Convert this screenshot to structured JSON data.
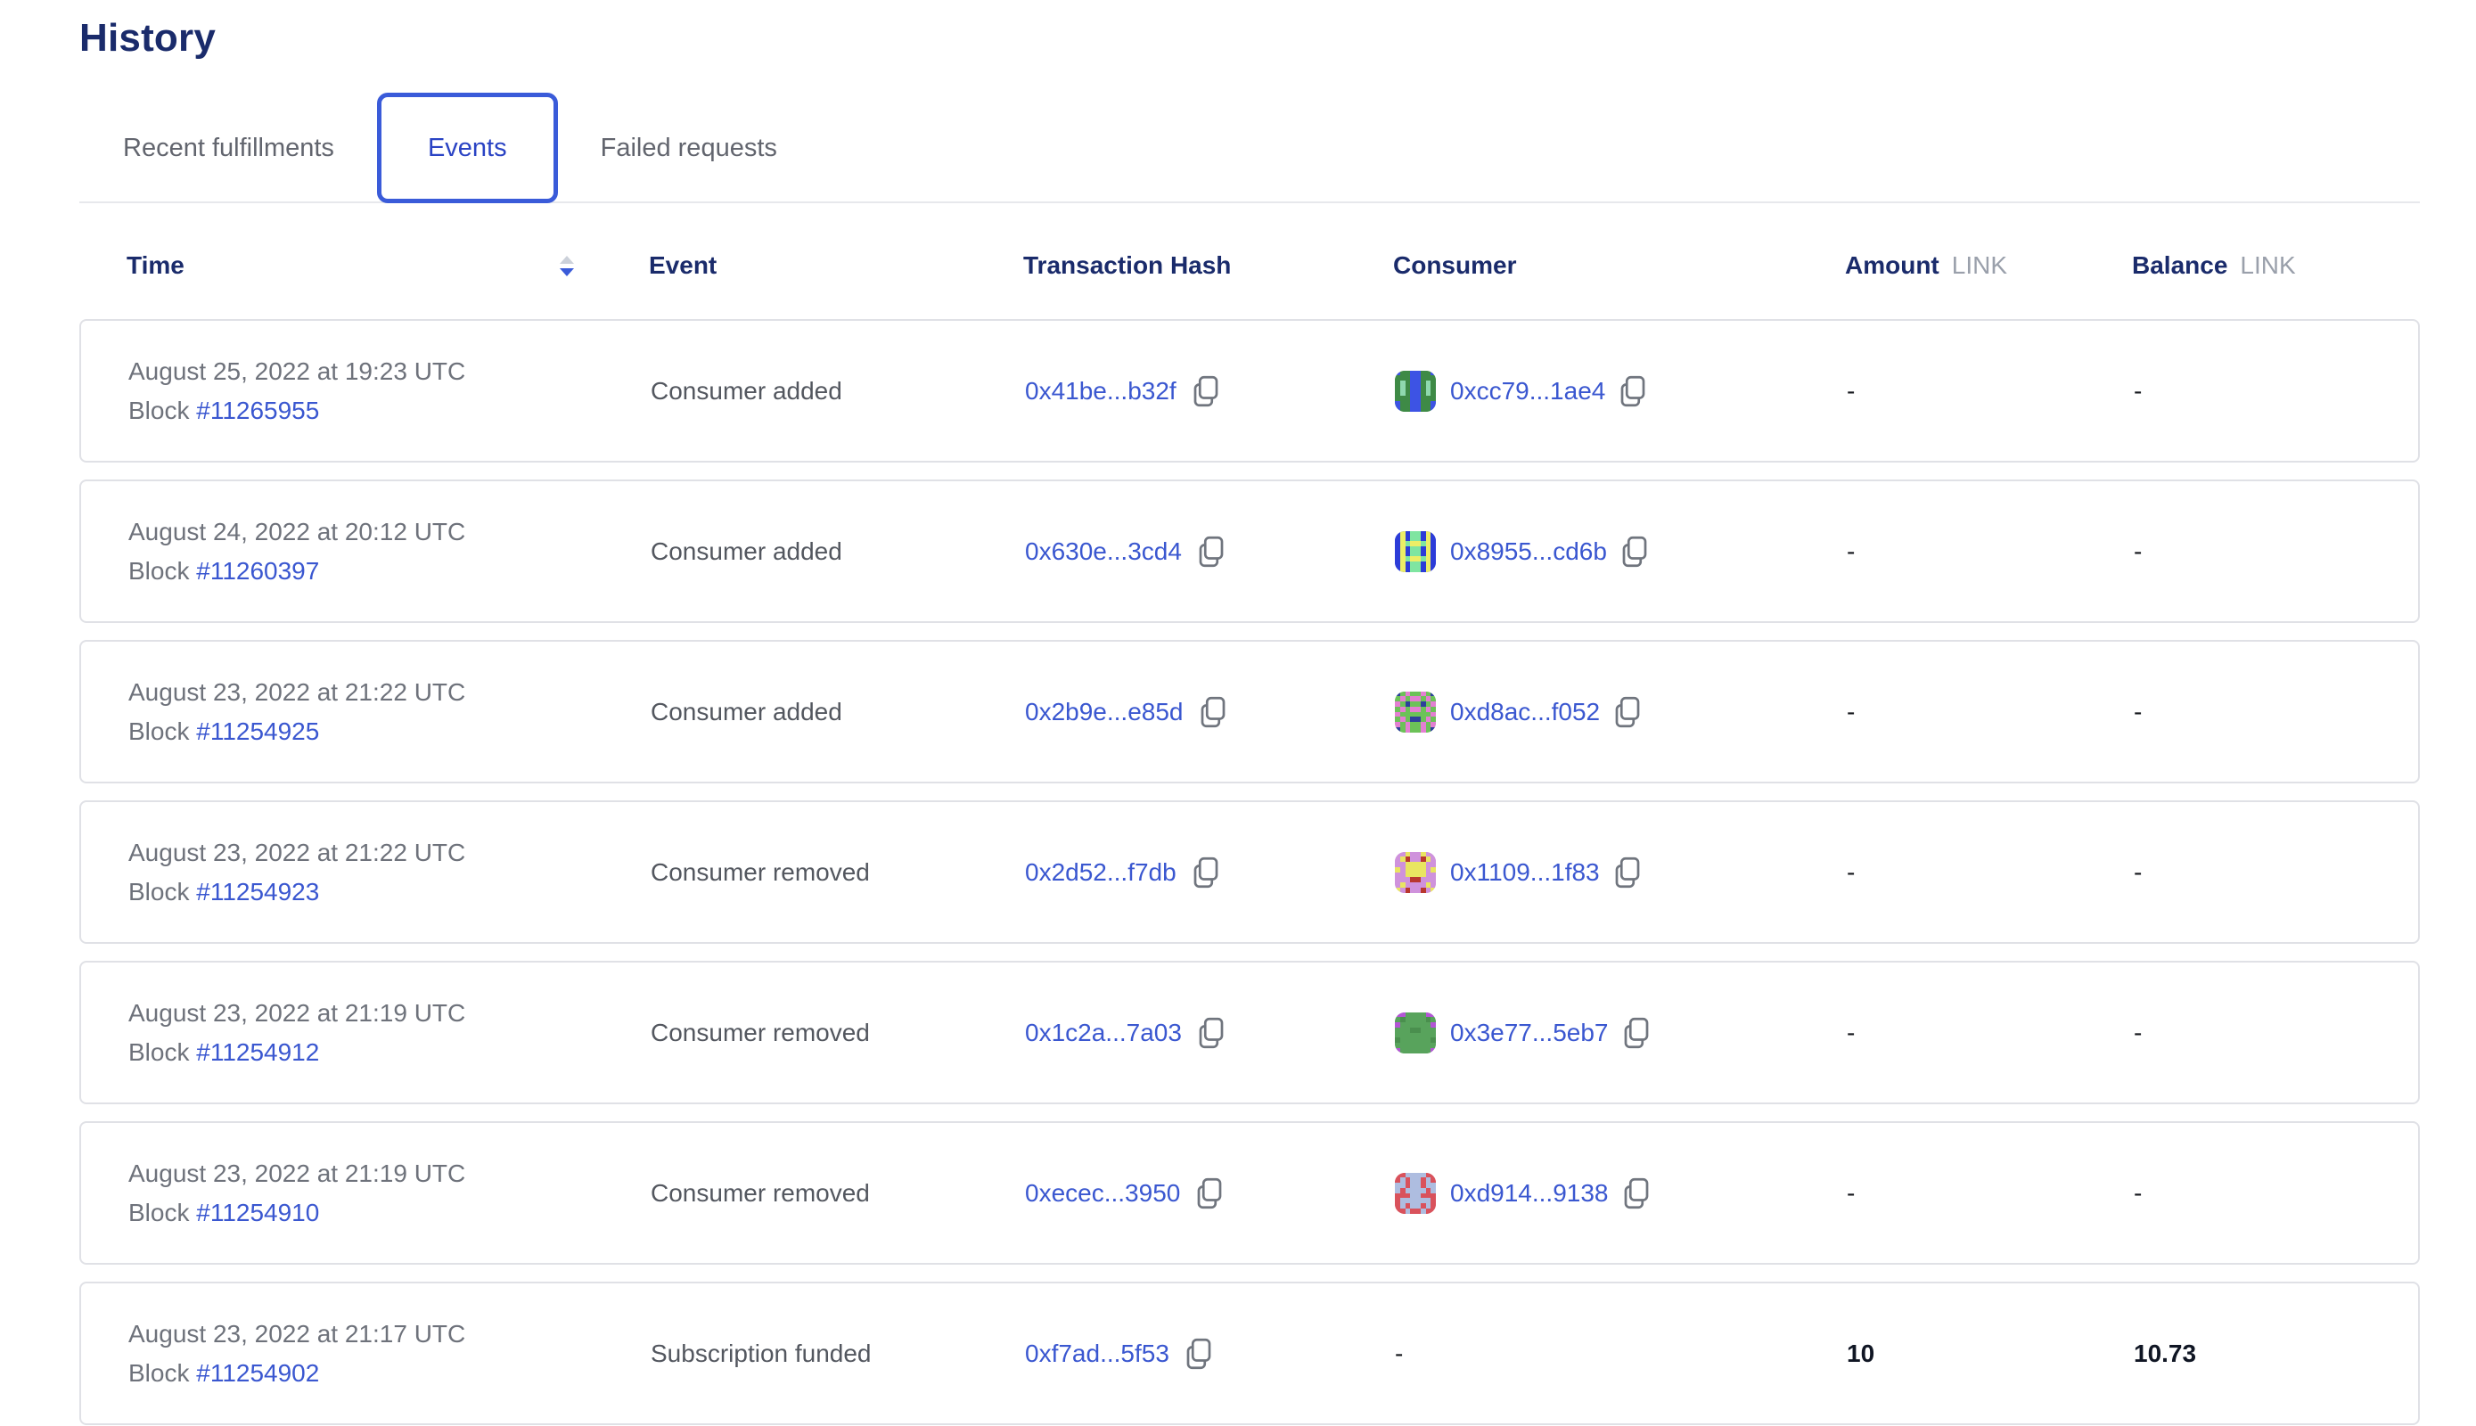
{
  "page": {
    "title": "History"
  },
  "tabs": [
    {
      "label": "Recent fulfillments",
      "active": false
    },
    {
      "label": "Events",
      "active": true
    },
    {
      "label": "Failed requests",
      "active": false
    }
  ],
  "colors": {
    "accent_blue": "#3a5bd9",
    "link_blue": "#3a57d0",
    "heading_navy": "#1a2b6b"
  },
  "table": {
    "columns": {
      "time": "Time",
      "event": "Event",
      "tx": "Transaction Hash",
      "consumer": "Consumer",
      "amount": "Amount",
      "balance": "Balance",
      "unit": "LINK"
    },
    "rows": [
      {
        "date": "August 25, 2022 at 19:23 UTC",
        "block_label": "Block",
        "block": "#11265955",
        "event": "Consumer added",
        "tx": "0x41be...b32f",
        "consumer": "0xcc79...1ae4",
        "amount": "-",
        "balance": "-",
        "identicon": {
          "bg": "#3e8a46",
          "fg": "#3d53e4",
          "spot": "#8fd9ae",
          "pattern": [
            "f..ff..f",
            "...ff...",
            ".s.ff.s.",
            ".s.ff.s.",
            ".s.ff.s.",
            "...ff...",
            "f..ff..f",
            "f..ff..f"
          ]
        }
      },
      {
        "date": "August 24, 2022 at 20:12 UTC",
        "block_label": "Block",
        "block": "#11260397",
        "event": "Consumer added",
        "tx": "0x630e...3cd4",
        "consumer": "0x8955...cd6b",
        "amount": "-",
        "balance": "-",
        "identicon": {
          "bg": "#2c3cd8",
          "fg": "#ecee66",
          "spot": "#7fe5a1",
          "pattern": [
            ".f.ss.f.",
            ".f.ss.f.",
            ".fsffsf.",
            ".f.ss.f.",
            ".f.ss.f.",
            ".fsffsf.",
            ".f.ss.f.",
            ".f.ss.f."
          ]
        }
      },
      {
        "date": "August 23, 2022 at 21:22 UTC",
        "block_label": "Block",
        "block": "#11254925",
        "event": "Consumer added",
        "tx": "0x2b9e...e85d",
        "consumer": "0xd8ac...f052",
        "amount": "-",
        "balance": "-",
        "identicon": {
          "bg": "#6cc258",
          "fg": "#e37fd2",
          "spot": "#2e3f9c",
          "pattern": [
            "s.f..f.s",
            ".f.ff.f.",
            "f.s..s.f",
            ".f.ff.f.",
            "f......f",
            ".f.ss.f.",
            "f.f..f.f",
            "s.f..f.s"
          ]
        }
      },
      {
        "date": "August 23, 2022 at 21:22 UTC",
        "block_label": "Block",
        "block": "#11254923",
        "event": "Consumer removed",
        "tx": "0x2d52...f7db",
        "consumer": "0x1109...1f83",
        "amount": "-",
        "balance": "-",
        "identicon": {
          "bg": "#cf92dc",
          "fg": "#e9e561",
          "spot": "#b8372e",
          "pattern": [
            "..f..f..",
            ".fs..sf.",
            "..ffff..",
            "f.ffff.f",
            "..ffff..",
            "...ss...",
            ".f....f.",
            "f.s..s.f"
          ]
        }
      },
      {
        "date": "August 23, 2022 at 21:19 UTC",
        "block_label": "Block",
        "block": "#11254912",
        "event": "Consumer removed",
        "tx": "0x1c2a...7a03",
        "consumer": "0x3e77...5eb7",
        "amount": "-",
        "balance": "-",
        "identicon": {
          "bg": "#58a35c",
          "fg": "#b455d6",
          "spot": "#4a8f4e",
          "pattern": [
            "ff....ff",
            ".s....s.",
            "f......f",
            "...ss...",
            "........",
            "s......s",
            "........",
            "f......f"
          ]
        }
      },
      {
        "date": "August 23, 2022 at 21:19 UTC",
        "block_label": "Block",
        "block": "#11254910",
        "event": "Consumer removed",
        "tx": "0xecec...3950",
        "consumer": "0xd914...9138",
        "amount": "-",
        "balance": "-",
        "identicon": {
          "bg": "#d9525c",
          "fg": "#aebde0",
          "spot": "#c23a44",
          "pattern": [
            "..ffff..",
            ".f.ff.f.",
            "ff.ff.ff",
            "f.ffff.f",
            "...ff...",
            ".ffffff.",
            ".f.ff.f.",
            "..f..f.."
          ]
        }
      },
      {
        "date": "August 23, 2022 at 21:17 UTC",
        "block_label": "Block",
        "block": "#11254902",
        "event": "Subscription funded",
        "tx": "0xf7ad...5f53",
        "consumer": "-",
        "amount": "10",
        "balance": "10.73",
        "identicon": null
      }
    ]
  }
}
